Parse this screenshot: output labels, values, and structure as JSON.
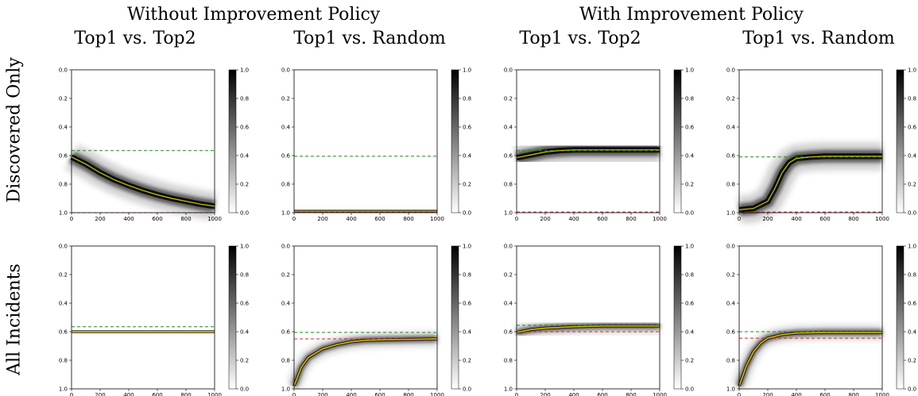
{
  "headers": {
    "without": "Without Improvement Policy",
    "with": "With Improvement Policy",
    "col1": "Top1 vs. Top2",
    "col2": "Top1 vs. Random",
    "col3": "Top1 vs. Top2",
    "col4": "Top1 vs. Random"
  },
  "rows": {
    "r1": "Discovered Only",
    "r2": "All Incidents"
  },
  "chart_data": [
    {
      "type": "heatmap",
      "panel": "without-discovered-top2",
      "xlim": [
        0,
        1000
      ],
      "ylim": [
        1.0,
        0.0
      ],
      "green_ref": 0.565,
      "red_ref": 1.0,
      "trend": {
        "x": [
          0,
          100,
          200,
          300,
          400,
          500,
          600,
          700,
          800,
          900,
          1000
        ],
        "y": [
          0.61,
          0.66,
          0.72,
          0.77,
          0.81,
          0.845,
          0.875,
          0.9,
          0.92,
          0.94,
          0.955
        ]
      }
    },
    {
      "type": "heatmap",
      "panel": "without-discovered-random",
      "xlim": [
        0,
        1000
      ],
      "ylim": [
        1.0,
        0.0
      ],
      "green_ref": 0.605,
      "red_ref": 0.995,
      "trend": {
        "x": [
          0,
          1000
        ],
        "y": [
          0.99,
          0.99
        ]
      }
    },
    {
      "type": "heatmap",
      "panel": "with-discovered-top2",
      "xlim": [
        0,
        1000
      ],
      "ylim": [
        1.0,
        0.0
      ],
      "green_ref": 0.565,
      "red_ref": 0.995,
      "trend": {
        "x": [
          0,
          100,
          200,
          300,
          400,
          600,
          800,
          1000
        ],
        "y": [
          0.615,
          0.595,
          0.575,
          0.565,
          0.56,
          0.56,
          0.56,
          0.56
        ]
      }
    },
    {
      "type": "heatmap",
      "panel": "with-discovered-random",
      "xlim": [
        0,
        1000
      ],
      "ylim": [
        1.0,
        0.0
      ],
      "green_ref": 0.61,
      "red_ref": 0.995,
      "trend": {
        "x": [
          0,
          100,
          200,
          250,
          300,
          350,
          400,
          500,
          600,
          800,
          1000
        ],
        "y": [
          0.98,
          0.97,
          0.92,
          0.83,
          0.72,
          0.65,
          0.62,
          0.61,
          0.605,
          0.605,
          0.605
        ]
      }
    },
    {
      "type": "heatmap",
      "panel": "without-all-top2",
      "xlim": [
        0,
        1000
      ],
      "ylim": [
        1.0,
        0.0
      ],
      "green_ref": 0.565,
      "red_ref": 0.6,
      "trend": {
        "x": [
          0,
          500,
          1000
        ],
        "y": [
          0.6,
          0.6,
          0.6
        ]
      }
    },
    {
      "type": "heatmap",
      "panel": "without-all-random",
      "xlim": [
        0,
        1000
      ],
      "ylim": [
        1.0,
        0.0
      ],
      "green_ref": 0.605,
      "red_ref": 0.65,
      "trend": {
        "x": [
          0,
          50,
          100,
          200,
          300,
          400,
          500,
          700,
          1000
        ],
        "y": [
          0.98,
          0.85,
          0.78,
          0.72,
          0.69,
          0.67,
          0.66,
          0.655,
          0.65
        ]
      }
    },
    {
      "type": "heatmap",
      "panel": "with-all-top2",
      "xlim": [
        0,
        1000
      ],
      "ylim": [
        1.0,
        0.0
      ],
      "green_ref": 0.555,
      "red_ref": 0.6,
      "trend": {
        "x": [
          0,
          100,
          200,
          400,
          600,
          800,
          1000
        ],
        "y": [
          0.605,
          0.585,
          0.575,
          0.565,
          0.56,
          0.56,
          0.56
        ]
      }
    },
    {
      "type": "heatmap",
      "panel": "with-all-random",
      "xlim": [
        0,
        1000
      ],
      "ylim": [
        1.0,
        0.0
      ],
      "green_ref": 0.6,
      "red_ref": 0.645,
      "trend": {
        "x": [
          0,
          50,
          100,
          150,
          200,
          300,
          400,
          600,
          800,
          1000
        ],
        "y": [
          0.98,
          0.84,
          0.74,
          0.68,
          0.645,
          0.62,
          0.61,
          0.605,
          0.605,
          0.605
        ]
      }
    }
  ],
  "ticks": {
    "y": [
      "0.0",
      "0.2",
      "0.4",
      "0.6",
      "0.8",
      "1.0"
    ],
    "x": [
      "0",
      "200",
      "400",
      "600",
      "800",
      "1000"
    ],
    "cbar": [
      "1.0",
      "0.8",
      "0.6",
      "0.4",
      "0.2",
      "0.0"
    ]
  },
  "colors": {
    "green": "#1a8a1a",
    "red": "#d62728",
    "trend": "#c8c400",
    "orange": "#ff8c00"
  }
}
